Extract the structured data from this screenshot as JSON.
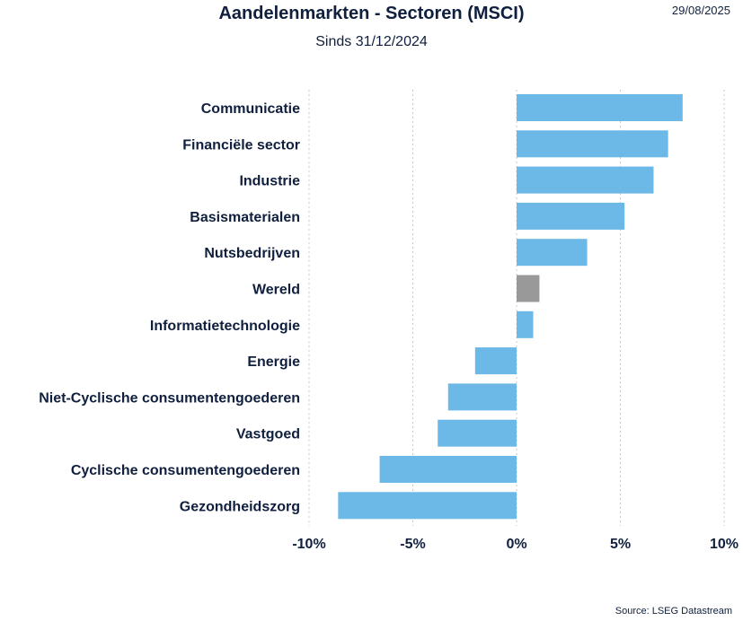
{
  "header": {
    "title": "Aandelenmarkten - Sectoren (MSCI)",
    "subtitle": "Sinds 31/12/2024",
    "date": "29/08/2025"
  },
  "footer": {
    "source": "Source: LSEG Datastream"
  },
  "colors": {
    "bar": "#6cb8e6",
    "highlight": "#999999",
    "grid": "#c8c8c8",
    "text": "#0f1f3d"
  },
  "chart_data": {
    "type": "bar",
    "orientation": "horizontal",
    "title": "Aandelenmarkten - Sectoren (MSCI)",
    "subtitle": "Sinds 31/12/2024",
    "categories": [
      "Communicatie",
      "Financiële sector",
      "Industrie",
      "Basismaterialen",
      "Nutsbedrijven",
      "Wereld",
      "Informatietechnologie",
      "Energie",
      "Niet-Cyclische consumentengoederen",
      "Vastgoed",
      "Cyclische consumentengoederen",
      "Gezondheidszorg"
    ],
    "values": [
      8.0,
      7.3,
      6.6,
      5.2,
      3.4,
      1.1,
      0.8,
      -2.0,
      -3.3,
      -3.8,
      -6.6,
      -8.6
    ],
    "highlight_category": "Wereld",
    "xlim": [
      -10,
      10
    ],
    "xticks": [
      -10,
      -5,
      0,
      5,
      10
    ],
    "xtick_labels": [
      "-10%",
      "-5%",
      "0%",
      "5%",
      "10%"
    ],
    "grid": "vertical dotted"
  }
}
